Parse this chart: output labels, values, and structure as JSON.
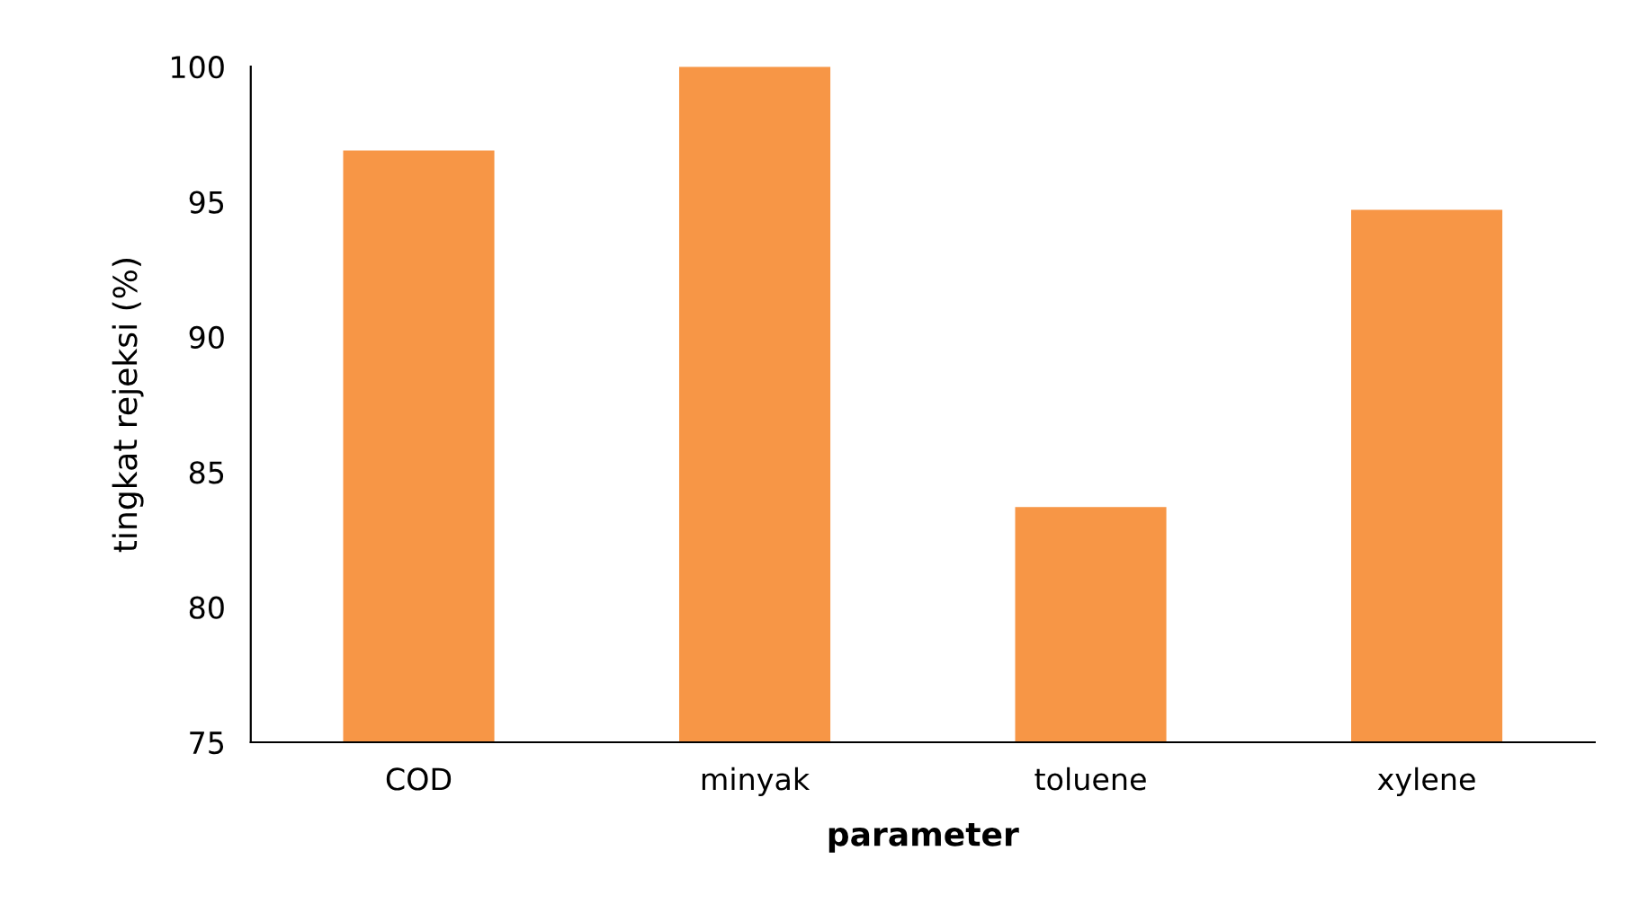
{
  "chart_data": {
    "type": "bar",
    "xlabel": "parameter",
    "ylabel": "tingkat rejeksi (%)",
    "categories": [
      "COD",
      "minyak",
      "toluene",
      "xylene"
    ],
    "values": [
      96.9,
      100,
      83.7,
      94.7
    ],
    "color": "#f79646",
    "ylim": [
      75,
      100
    ],
    "yticks": [
      75,
      80,
      85,
      90,
      95,
      100
    ],
    "grid": false
  }
}
